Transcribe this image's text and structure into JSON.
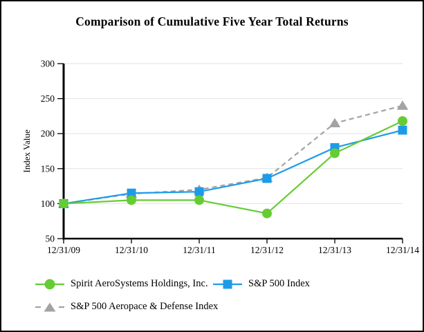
{
  "chart_data": {
    "type": "line",
    "title": "Comparison of Cumulative Five Year Total Returns",
    "xlabel": "",
    "ylabel": "Index Value",
    "categories": [
      "12/31/09",
      "12/31/10",
      "12/31/11",
      "12/31/12",
      "12/31/13",
      "12/31/14"
    ],
    "series": [
      {
        "name": "Spirit AeroSystems Holdings, Inc.",
        "values": [
          100,
          105,
          105,
          86,
          172,
          218
        ],
        "color": "#66CC33",
        "marker": "circle",
        "line": "solid"
      },
      {
        "name": "S&P 500 Index",
        "values": [
          100,
          115,
          117,
          136,
          180,
          205
        ],
        "color": "#1E9BE8",
        "marker": "square",
        "line": "solid"
      },
      {
        "name": "S&P 500 Aeropace & Defense Index",
        "values": [
          100,
          114,
          120,
          137,
          215,
          240
        ],
        "color": "#A3A3A3",
        "marker": "triangle",
        "line": "dashed"
      }
    ],
    "ylim": [
      50,
      300
    ],
    "yticks": [
      50,
      100,
      150,
      200,
      250,
      300
    ],
    "grid": true,
    "legend_position": "bottom",
    "colors": {
      "axis": "#000000",
      "grid": "#E2E2E2",
      "text": "#000000"
    }
  }
}
